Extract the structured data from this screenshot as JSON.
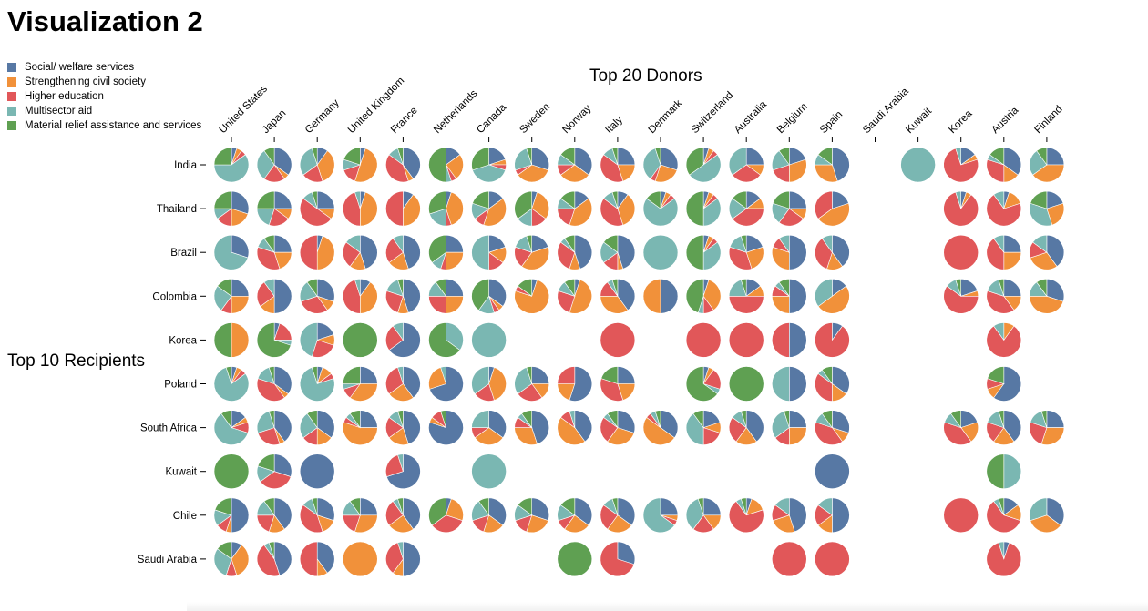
{
  "page": {
    "title": "Visualization 2"
  },
  "legend": [
    {
      "label": "Social/ welfare services",
      "color": "#5778a4"
    },
    {
      "label": "Strengthening civil society",
      "color": "#f1913a"
    },
    {
      "label": "Higher education",
      "color": "#e15759"
    },
    {
      "label": "Multisector aid",
      "color": "#7ab7b2"
    },
    {
      "label": "Material relief assistance and services",
      "color": "#5fa052"
    }
  ],
  "chart_data": {
    "type": "pie",
    "title": "Top 20 Donors",
    "row_title": "Top 10 Recipients",
    "series": [
      "Social/ welfare services",
      "Strengthening civil society",
      "Higher education",
      "Multisector aid",
      "Material relief assistance and services"
    ],
    "donors": [
      "United States",
      "Japan",
      "Germany",
      "United Kingdom",
      "France",
      "Netherlands",
      "Canada",
      "Sweden",
      "Norway",
      "Italy",
      "Denmark",
      "Switzerland",
      "Australia",
      "Belgium",
      "Spain",
      "Saudi Arabia",
      "Kuwait",
      "Korea",
      "Austria",
      "Finland"
    ],
    "recipients": [
      "India",
      "Thailand",
      "Brazil",
      "Colombia",
      "Korea",
      "Poland",
      "South Africa",
      "Kuwait",
      "Chile",
      "Saudi Arabia"
    ],
    "cells": [
      [
        [
          5,
          5,
          5,
          60,
          25
        ],
        [
          35,
          5,
          20,
          30,
          10
        ],
        [
          10,
          35,
          20,
          30,
          5
        ],
        [
          5,
          50,
          15,
          10,
          20
        ],
        [
          40,
          5,
          40,
          10,
          5
        ],
        [
          15,
          25,
          5,
          5,
          50
        ],
        [
          20,
          5,
          5,
          40,
          30
        ],
        [
          30,
          35,
          5,
          25,
          5
        ],
        [
          35,
          30,
          10,
          10,
          15
        ],
        [
          25,
          20,
          40,
          10,
          5
        ],
        [
          30,
          25,
          5,
          35,
          5
        ],
        [
          5,
          5,
          5,
          50,
          35
        ],
        [
          25,
          10,
          30,
          35,
          0
        ],
        [
          20,
          30,
          20,
          20,
          10
        ],
        [
          45,
          30,
          0,
          10,
          15
        ],
        null,
        [
          0,
          0,
          0,
          100,
          0
        ],
        [
          15,
          5,
          75,
          5,
          0
        ],
        [
          35,
          15,
          30,
          5,
          15
        ],
        [
          25,
          40,
          0,
          25,
          10
        ]
      ],
      [
        [
          30,
          20,
          15,
          10,
          25
        ],
        [
          25,
          10,
          20,
          20,
          25
        ],
        [
          25,
          10,
          50,
          10,
          5
        ],
        [
          5,
          45,
          45,
          5,
          0
        ],
        [
          10,
          40,
          50,
          0,
          0
        ],
        [
          5,
          40,
          5,
          20,
          30
        ],
        [
          15,
          40,
          10,
          15,
          20
        ],
        [
          5,
          30,
          15,
          15,
          35
        ],
        [
          15,
          40,
          20,
          10,
          15
        ],
        [
          10,
          35,
          40,
          10,
          5
        ],
        [
          5,
          5,
          5,
          70,
          15
        ],
        [
          5,
          5,
          5,
          35,
          50
        ],
        [
          15,
          10,
          40,
          20,
          15
        ],
        [
          25,
          10,
          25,
          20,
          20
        ],
        [
          20,
          45,
          35,
          0,
          0
        ],
        null,
        null,
        [
          5,
          5,
          85,
          5,
          0
        ],
        [
          5,
          15,
          70,
          10,
          0
        ],
        [
          20,
          25,
          0,
          35,
          20
        ]
      ],
      [
        [
          30,
          0,
          0,
          70,
          0
        ],
        [
          25,
          20,
          35,
          10,
          10
        ],
        [
          5,
          45,
          50,
          0,
          0
        ],
        [
          45,
          15,
          25,
          15,
          0
        ],
        [
          45,
          20,
          25,
          10,
          0
        ],
        [
          25,
          25,
          5,
          10,
          35
        ],
        [
          20,
          15,
          15,
          50,
          0
        ],
        [
          20,
          40,
          20,
          15,
          5
        ],
        [
          45,
          10,
          30,
          5,
          10
        ],
        [
          45,
          5,
          15,
          20,
          15
        ],
        [
          0,
          0,
          0,
          100,
          0
        ],
        [
          5,
          5,
          5,
          35,
          50
        ],
        [
          20,
          25,
          35,
          15,
          5
        ],
        [
          50,
          30,
          10,
          10,
          0
        ],
        [
          40,
          15,
          35,
          10,
          0
        ],
        null,
        null,
        [
          0,
          0,
          100,
          0,
          0
        ],
        [
          25,
          25,
          40,
          10,
          0
        ],
        [
          40,
          30,
          15,
          15,
          0
        ]
      ],
      [
        [
          25,
          25,
          10,
          25,
          15
        ],
        [
          50,
          15,
          25,
          10,
          0
        ],
        [
          30,
          10,
          30,
          20,
          10
        ],
        [
          10,
          40,
          45,
          5,
          0
        ],
        [
          45,
          10,
          25,
          15,
          5
        ],
        [
          25,
          25,
          25,
          15,
          10
        ],
        [
          35,
          5,
          5,
          15,
          40
        ],
        [
          5,
          75,
          5,
          0,
          15
        ],
        [
          5,
          50,
          25,
          10,
          10
        ],
        [
          40,
          35,
          15,
          5,
          5
        ],
        [
          50,
          50,
          0,
          0,
          0
        ],
        [
          5,
          35,
          10,
          5,
          45
        ],
        [
          15,
          10,
          50,
          20,
          5
        ],
        [
          50,
          25,
          10,
          5,
          10
        ],
        [
          15,
          50,
          0,
          35,
          0
        ],
        null,
        null,
        [
          20,
          5,
          60,
          10,
          5
        ],
        [
          25,
          15,
          40,
          15,
          5
        ],
        [
          30,
          45,
          0,
          15,
          10
        ]
      ],
      [
        [
          0,
          50,
          0,
          0,
          50
        ],
        [
          5,
          0,
          20,
          5,
          70
        ],
        [
          20,
          10,
          25,
          45,
          0
        ],
        [
          0,
          0,
          0,
          0,
          100
        ],
        [
          65,
          0,
          25,
          10,
          0
        ],
        [
          0,
          0,
          0,
          35,
          65
        ],
        [
          0,
          0,
          0,
          100,
          0
        ],
        null,
        null,
        [
          0,
          0,
          100,
          0,
          0
        ],
        null,
        [
          0,
          0,
          100,
          0,
          0
        ],
        [
          0,
          0,
          100,
          0,
          0
        ],
        [
          50,
          0,
          50,
          0,
          0
        ],
        [
          10,
          0,
          90,
          0,
          0
        ],
        null,
        null,
        null,
        [
          0,
          10,
          80,
          10,
          0
        ],
        null
      ],
      [
        [
          5,
          5,
          5,
          80,
          5
        ],
        [
          35,
          5,
          40,
          15,
          5
        ],
        [
          5,
          10,
          5,
          75,
          5
        ],
        [
          25,
          35,
          10,
          5,
          25
        ],
        [
          40,
          25,
          30,
          5,
          0
        ],
        [
          70,
          25,
          0,
          5,
          0
        ],
        [
          5,
          40,
          20,
          35,
          0
        ],
        [
          25,
          15,
          25,
          30,
          5
        ],
        [
          55,
          20,
          25,
          0,
          0
        ],
        [
          25,
          20,
          35,
          0,
          20
        ],
        null,
        [
          5,
          5,
          20,
          5,
          65
        ],
        [
          0,
          0,
          0,
          0,
          100
        ],
        [
          50,
          0,
          0,
          50,
          0
        ],
        [
          35,
          15,
          35,
          5,
          10
        ],
        null,
        null,
        null,
        [
          60,
          10,
          10,
          0,
          20
        ],
        null
      ],
      [
        [
          15,
          5,
          10,
          60,
          10
        ],
        [
          40,
          5,
          25,
          25,
          5
        ],
        [
          35,
          15,
          15,
          25,
          10
        ],
        [
          25,
          55,
          5,
          5,
          10
        ],
        [
          45,
          20,
          20,
          10,
          5
        ],
        [
          80,
          5,
          10,
          0,
          5
        ],
        [
          35,
          30,
          10,
          25,
          0
        ],
        [
          45,
          30,
          10,
          5,
          10
        ],
        [
          40,
          45,
          10,
          5,
          0
        ],
        [
          30,
          30,
          25,
          5,
          10
        ],
        [
          35,
          50,
          5,
          5,
          5
        ],
        [
          20,
          10,
          20,
          40,
          10
        ],
        [
          40,
          20,
          25,
          10,
          5
        ],
        [
          25,
          25,
          15,
          30,
          5
        ],
        [
          30,
          10,
          40,
          10,
          10
        ],
        null,
        null,
        [
          20,
          20,
          40,
          10,
          10
        ],
        [
          40,
          20,
          20,
          15,
          5
        ],
        [
          25,
          30,
          25,
          15,
          5
        ]
      ],
      [
        [
          0,
          0,
          0,
          0,
          100
        ],
        [
          30,
          0,
          35,
          15,
          20
        ],
        [
          100,
          0,
          0,
          0,
          0
        ],
        null,
        [
          70,
          0,
          25,
          5,
          0
        ],
        null,
        [
          0,
          0,
          0,
          100,
          0
        ],
        null,
        null,
        null,
        null,
        null,
        null,
        null,
        [
          100,
          0,
          0,
          0,
          0
        ],
        null,
        null,
        null,
        [
          0,
          0,
          0,
          50,
          50
        ],
        null
      ],
      [
        [
          50,
          5,
          10,
          15,
          20
        ],
        [
          40,
          15,
          20,
          15,
          10
        ],
        [
          30,
          15,
          40,
          10,
          5
        ],
        [
          25,
          30,
          20,
          15,
          10
        ],
        [
          40,
          25,
          25,
          5,
          5
        ],
        [
          5,
          25,
          35,
          0,
          35
        ],
        [
          35,
          20,
          15,
          20,
          10
        ],
        [
          30,
          25,
          15,
          15,
          15
        ],
        [
          35,
          25,
          10,
          15,
          15
        ],
        [
          35,
          25,
          25,
          10,
          5
        ],
        [
          25,
          5,
          5,
          65,
          0
        ],
        [
          25,
          15,
          20,
          35,
          5
        ],
        [
          5,
          15,
          70,
          5,
          5
        ],
        [
          45,
          25,
          15,
          15,
          0
        ],
        [
          50,
          15,
          20,
          15,
          0
        ],
        null,
        null,
        [
          0,
          0,
          100,
          0,
          0
        ],
        [
          15,
          15,
          60,
          5,
          5
        ],
        [
          35,
          35,
          0,
          30,
          0
        ]
      ],
      [
        [
          10,
          35,
          10,
          30,
          15
        ],
        [
          45,
          0,
          45,
          5,
          5
        ],
        [
          40,
          10,
          50,
          0,
          0
        ],
        [
          0,
          100,
          0,
          0,
          0
        ],
        [
          50,
          10,
          35,
          5,
          0
        ],
        null,
        null,
        null,
        [
          0,
          0,
          0,
          0,
          100
        ],
        [
          30,
          0,
          70,
          0,
          0
        ],
        null,
        null,
        null,
        [
          0,
          0,
          100,
          0,
          0
        ],
        [
          0,
          0,
          100,
          0,
          0
        ],
        null,
        null,
        null,
        [
          5,
          0,
          90,
          5,
          0
        ],
        null
      ]
    ]
  }
}
